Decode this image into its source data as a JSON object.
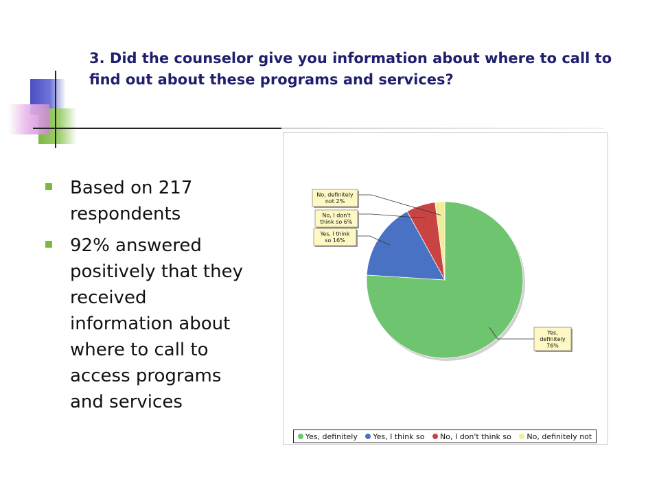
{
  "title": "3. Did the counselor give you information about where to call to find out about these programs and services?",
  "bullets": [
    "Based on 217 respondents",
    "92% answered positively that they received information about where to call to access programs and services"
  ],
  "colors": {
    "title": "#1f1f6e",
    "bullet_marker": "#7cba3f"
  },
  "chart_data": {
    "type": "pie",
    "categories": [
      "Yes, definitely",
      "Yes, I think so",
      "No, I don't think so",
      "No, definitely not"
    ],
    "values": [
      76,
      16,
      6,
      2
    ],
    "unit": "%",
    "colors": [
      "#6fc46f",
      "#4a72c4",
      "#c94343",
      "#f1ec9a"
    ],
    "data_labels": [
      [
        "Yes,",
        "definitely",
        "76%"
      ],
      [
        "Yes, I think",
        "so  16%"
      ],
      [
        "No, I don't",
        "think so   6%"
      ],
      [
        "No, definitely",
        "not   2%"
      ]
    ],
    "legend": {
      "position": "bottom",
      "entries": [
        "Yes, definitely",
        "Yes, I think so",
        "No, I don't think so",
        "No, definitely not"
      ]
    }
  }
}
